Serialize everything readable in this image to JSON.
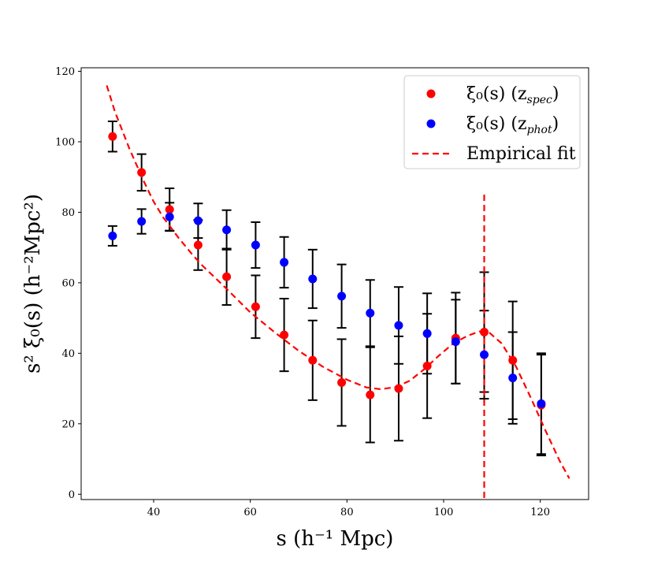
{
  "chart_data": {
    "type": "scatter",
    "xlabel": "s (h⁻¹ Mpc)",
    "ylabel": "s² ξ₀(s) (h⁻²Mpc²)",
    "xlim": [
      25,
      130
    ],
    "ylim": [
      -1.5,
      121
    ],
    "xticks": [
      40,
      60,
      80,
      100,
      120
    ],
    "yticks": [
      0,
      20,
      40,
      60,
      80,
      100,
      120
    ],
    "grid": false,
    "legend_position": "top-right",
    "series": [
      {
        "name": "ξ₀(s) (z_spec)",
        "kind": "points",
        "color": "#ff0000",
        "x": [
          31.5,
          37.5,
          43.3,
          49.2,
          55.1,
          61.1,
          67.0,
          72.9,
          78.9,
          84.8,
          90.7,
          96.6,
          102.5,
          108.4,
          114.3,
          120.2
        ],
        "y": [
          101.5,
          91.3,
          80.8,
          70.7,
          61.7,
          53.2,
          45.2,
          38.0,
          31.7,
          28.2,
          30.0,
          36.4,
          44.3,
          46.0,
          38.0,
          25.3
        ],
        "err": [
          4.3,
          5.2,
          6.0,
          7.1,
          8.0,
          8.9,
          10.3,
          11.3,
          12.3,
          13.5,
          14.8,
          14.8,
          12.9,
          17.0,
          16.7,
          14.3
        ]
      },
      {
        "name": "ξ₀(s) (z_phot)",
        "kind": "points",
        "color": "#0000ff",
        "x": [
          31.5,
          37.5,
          43.3,
          49.2,
          55.1,
          61.1,
          67.0,
          72.9,
          78.9,
          84.8,
          90.7,
          96.6,
          102.5,
          108.4,
          114.3,
          120.2
        ],
        "y": [
          73.3,
          77.4,
          78.7,
          77.6,
          75.0,
          70.7,
          65.8,
          61.1,
          56.2,
          51.4,
          47.9,
          45.6,
          43.3,
          39.6,
          33.0,
          25.7
        ],
        "err": [
          2.8,
          3.5,
          4.0,
          4.9,
          5.6,
          6.5,
          7.2,
          8.3,
          9.0,
          9.4,
          10.9,
          11.4,
          11.9,
          12.5,
          13.0,
          14.3
        ]
      },
      {
        "name": "Empirical fit",
        "kind": "dashed-line",
        "color": "#ff0000",
        "x": [
          30.3,
          32,
          35,
          38,
          40,
          42,
          45,
          48,
          50,
          55,
          60,
          65,
          70,
          75,
          80,
          84,
          87,
          90,
          93,
          96,
          99,
          102,
          105,
          107.5,
          109.5,
          112,
          115,
          118,
          121,
          124,
          126
        ],
        "y": [
          116.0,
          108.5,
          98.0,
          88.7,
          83.0,
          78.5,
          73.0,
          68.0,
          65.0,
          58.4,
          51.6,
          46.0,
          40.7,
          36.2,
          32.5,
          30.3,
          29.8,
          30.4,
          32.2,
          35.5,
          39.3,
          42.8,
          45.0,
          46.2,
          45.8,
          42.8,
          36.2,
          27.5,
          18.3,
          9.5,
          4.5
        ]
      },
      {
        "name": "vertical-marker",
        "kind": "dashed-vline",
        "color": "#ff0000",
        "x": 108.4,
        "y_range": [
          -1.5,
          85.0
        ]
      }
    ],
    "legend": [
      {
        "label": "ξ₀(s) (z",
        "sub": "spec",
        "close": ")",
        "color": "#ff0000",
        "kind": "point"
      },
      {
        "label": "ξ₀(s) (z",
        "sub": "phot",
        "close": ")",
        "color": "#0000ff",
        "kind": "point"
      },
      {
        "label": "Empirical fit",
        "sub": "",
        "close": "",
        "color": "#ff0000",
        "kind": "dash"
      }
    ]
  }
}
